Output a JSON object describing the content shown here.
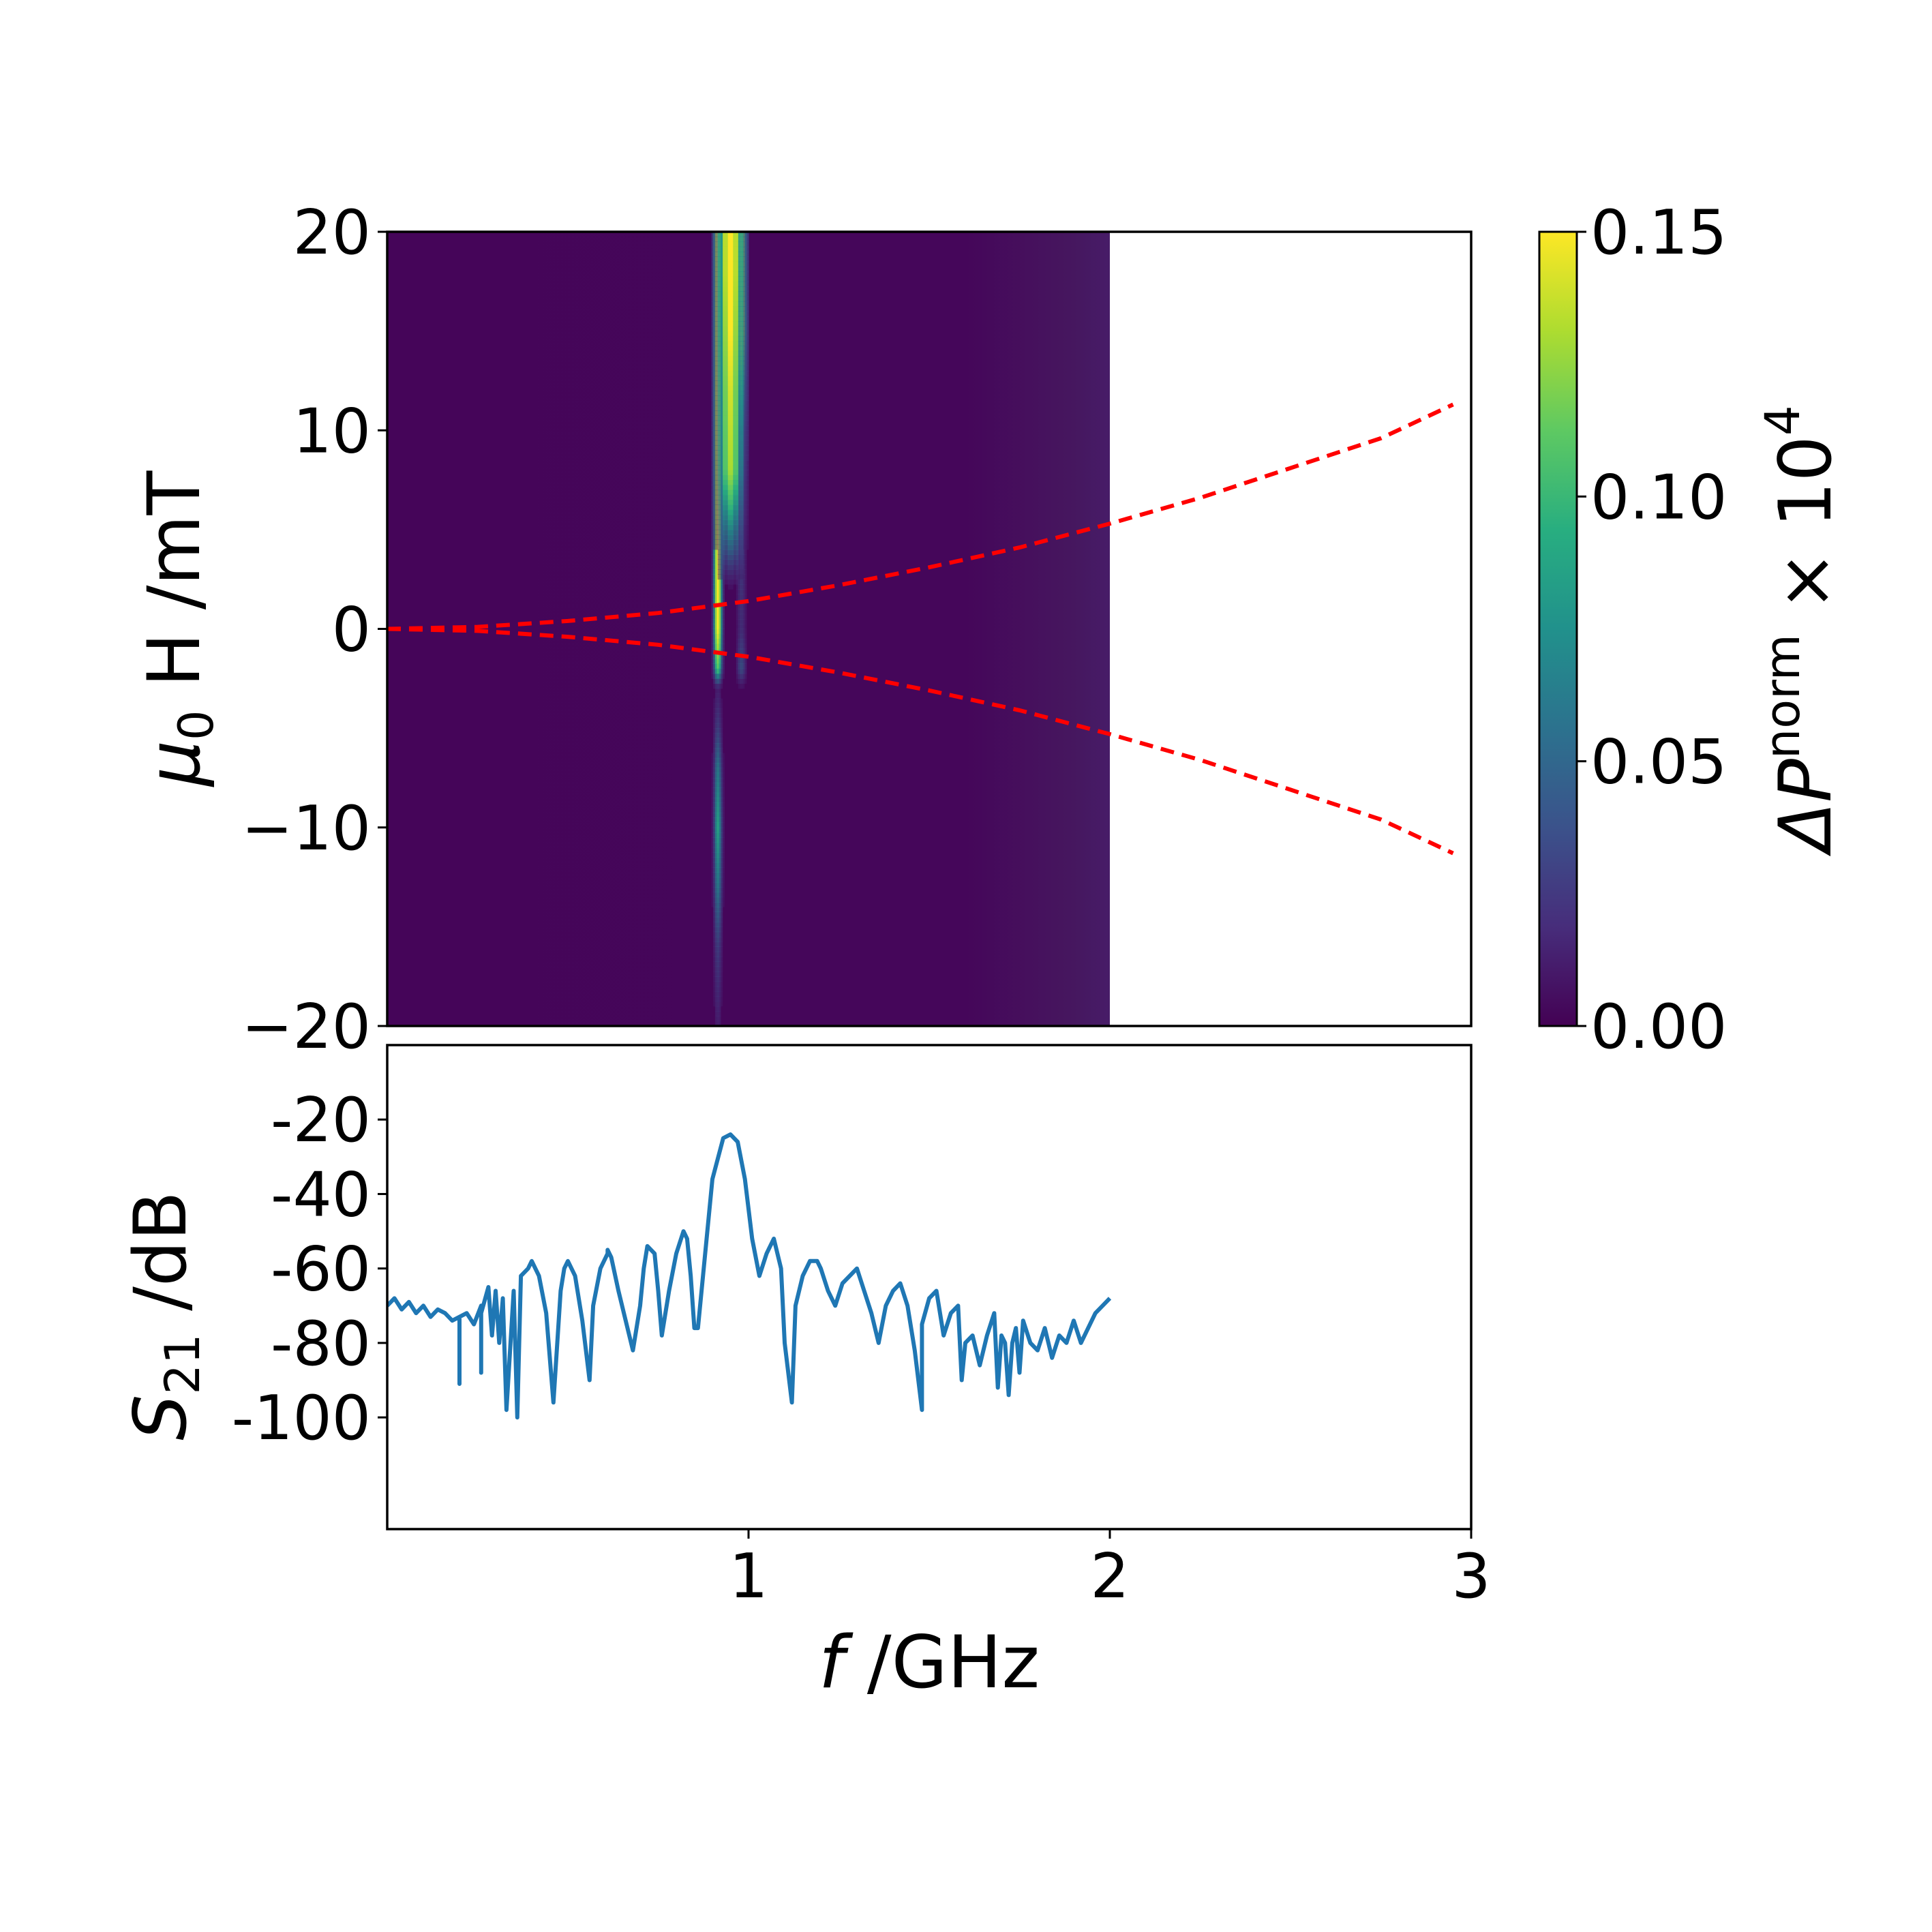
{
  "chart_data": [
    {
      "type": "heatmap",
      "xlim": [
        0,
        3
      ],
      "ylim": [
        -20,
        20
      ],
      "x_data_range": [
        0,
        2
      ],
      "y_ticks": [
        "20",
        "10",
        "0",
        "−10",
        "−20"
      ],
      "y_tick_values": [
        20,
        10,
        0,
        -10,
        -20
      ],
      "ylabel_symbol": "μ",
      "ylabel_sub": "0",
      "ylabel_rest": "H /mT",
      "colorbar": {
        "colormap": "viridis",
        "range": [
          0,
          0.15
        ],
        "ticks": [
          "0.15",
          "0.10",
          "0.05",
          "0.00"
        ],
        "tick_values": [
          0.15,
          0.1,
          0.05,
          0.0
        ],
        "label_base": "ΔP",
        "label_sup": "norm",
        "label_times": "× 10",
        "label_exp": "4"
      },
      "resonance_columns": [
        {
          "f": 0.915,
          "halfwidth": 0.018,
          "profile": [
            [
              20,
              0.16
            ],
            [
              10,
              0.16
            ],
            [
              5,
              0.15
            ],
            [
              2,
              0.15
            ],
            [
              0,
              0.15
            ],
            [
              -2,
              0.11
            ],
            [
              -3,
              0.02
            ],
            [
              -5,
              0.04
            ],
            [
              -7,
              0.07
            ],
            [
              -10,
              0.09
            ],
            [
              -13,
              0.07
            ],
            [
              -16,
              0.04
            ],
            [
              -20,
              0.02
            ]
          ]
        },
        {
          "f": 0.98,
          "halfwidth": 0.02,
          "profile": [
            [
              20,
              0.16
            ],
            [
              15,
              0.16
            ],
            [
              10,
              0.07
            ],
            [
              5,
              0.04
            ],
            [
              0,
              0.03
            ],
            [
              -2,
              0.05
            ],
            [
              -3,
              0.01
            ],
            [
              -20,
              0.0
            ]
          ]
        },
        {
          "f": 0.95,
          "halfwidth": 0.05,
          "profile": [
            [
              20,
              0.16
            ],
            [
              18,
              0.16
            ],
            [
              12,
              0.14
            ],
            [
              8,
              0.13
            ],
            [
              4,
              0.06
            ],
            [
              2,
              0.01
            ],
            [
              -20,
              0.0
            ]
          ]
        }
      ],
      "overlay_curves": {
        "color": "#ff0000",
        "style": "dashed",
        "description_points_f": [
          0.0,
          0.25,
          0.5,
          0.75,
          1.0,
          1.25,
          1.5,
          1.75,
          2.0,
          2.25,
          2.5,
          2.75,
          2.95
        ],
        "upper_h": [
          0.0,
          0.1,
          0.4,
          0.8,
          1.4,
          2.2,
          3.1,
          4.1,
          5.3,
          6.6,
          8.1,
          9.6,
          11.3
        ],
        "lower_h": [
          0.0,
          -0.1,
          -0.4,
          -0.8,
          -1.4,
          -2.2,
          -3.1,
          -4.1,
          -5.3,
          -6.6,
          -8.1,
          -9.6,
          -11.3
        ]
      }
    },
    {
      "type": "line",
      "xlim": [
        0,
        3
      ],
      "ylim": [
        -130,
        0
      ],
      "x_ticks": [
        "1",
        "2",
        "3"
      ],
      "x_tick_values": [
        1,
        2,
        3
      ],
      "y_ticks": [
        "-20",
        "-40",
        "-60",
        "-80",
        "-100"
      ],
      "y_tick_values": [
        -20,
        -40,
        -60,
        -80,
        -100
      ],
      "xlabel_italic": "f",
      "xlabel_rest": " /GHz",
      "ylabel_italic": "S",
      "ylabel_sub": "21",
      "ylabel_rest": " /dB",
      "series": [
        {
          "color": "#1f77b4",
          "x": [
            0.0,
            0.02,
            0.04,
            0.06,
            0.08,
            0.1,
            0.12,
            0.14,
            0.16,
            0.18,
            0.2,
            0.2,
            0.2,
            0.22,
            0.24,
            0.26,
            0.26,
            0.26,
            0.28,
            0.29,
            0.3,
            0.31,
            0.32,
            0.33,
            0.35,
            0.36,
            0.37,
            0.39,
            0.4,
            0.42,
            0.44,
            0.46,
            0.48,
            0.49,
            0.5,
            0.52,
            0.54,
            0.56,
            0.57,
            0.59,
            0.61,
            0.61,
            0.62,
            0.64,
            0.66,
            0.68,
            0.7,
            0.71,
            0.72,
            0.74,
            0.75,
            0.76,
            0.78,
            0.8,
            0.82,
            0.83,
            0.84,
            0.85,
            0.86,
            0.88,
            0.9,
            0.93,
            0.95,
            0.97,
            0.99,
            1.01,
            1.03,
            1.05,
            1.07,
            1.09,
            1.1,
            1.12,
            1.13,
            1.15,
            1.17,
            1.19,
            1.2,
            1.22,
            1.24,
            1.26,
            1.28,
            1.3,
            1.32,
            1.34,
            1.36,
            1.38,
            1.4,
            1.42,
            1.44,
            1.46,
            1.48,
            1.48,
            1.5,
            1.52,
            1.54,
            1.56,
            1.58,
            1.59,
            1.6,
            1.62,
            1.64,
            1.66,
            1.68,
            1.69,
            1.7,
            1.71,
            1.72,
            1.73,
            1.74,
            1.75,
            1.76,
            1.78,
            1.8,
            1.82,
            1.84,
            1.86,
            1.88,
            1.9,
            1.92,
            1.94,
            1.96,
            1.98,
            2.0
          ],
          "values": [
            -70,
            -68,
            -71,
            -69,
            -72,
            -70,
            -73,
            -71,
            -72,
            -74,
            -73,
            -91,
            -73,
            -72,
            -75,
            -70,
            -88,
            -72,
            -65,
            -78,
            -66,
            -80,
            -68,
            -98,
            -66,
            -100,
            -62,
            -60,
            -58,
            -62,
            -72,
            -96,
            -66,
            -60,
            -58,
            -62,
            -74,
            -90,
            -70,
            -60,
            -56,
            -55,
            -57,
            -66,
            -74,
            -82,
            -70,
            -60,
            -54,
            -56,
            -66,
            -78,
            -66,
            -56,
            -50,
            -52,
            -62,
            -76,
            -76,
            -56,
            -36,
            -25,
            -24,
            -26,
            -36,
            -52,
            -62,
            -56,
            -52,
            -60,
            -80,
            -96,
            -70,
            -62,
            -58,
            -58,
            -60,
            -66,
            -70,
            -64,
            -62,
            -60,
            -66,
            -72,
            -80,
            -70,
            -66,
            -64,
            -70,
            -82,
            -98,
            -75,
            -68,
            -66,
            -78,
            -72,
            -70,
            -90,
            -80,
            -78,
            -86,
            -78,
            -72,
            -92,
            -78,
            -80,
            -94,
            -80,
            -76,
            -88,
            -74,
            -80,
            -82,
            -76,
            -84,
            -78,
            -80,
            -74,
            -80,
            -76,
            -72,
            -70,
            -68
          ]
        }
      ]
    }
  ]
}
